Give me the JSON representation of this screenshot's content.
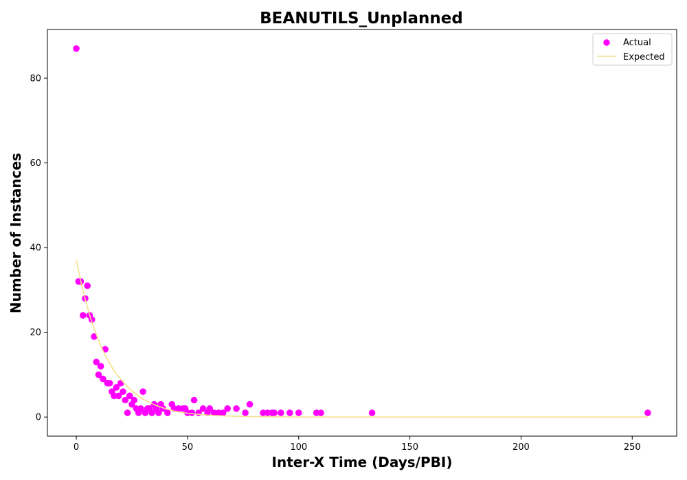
{
  "chart_data": {
    "type": "scatter",
    "title": "BEANUTILS_Unplanned",
    "xlabel": "Inter-X Time (Days/PBI)",
    "ylabel": "Number of Instances",
    "xlim": [
      -13,
      270
    ],
    "ylim": [
      -4.5,
      91.5
    ],
    "xticks": [
      0,
      50,
      100,
      150,
      200,
      250
    ],
    "yticks": [
      0,
      20,
      40,
      60,
      80
    ],
    "grid": false,
    "legend_position": "top-right",
    "series": [
      {
        "name": "Actual",
        "kind": "scatter",
        "color": "#ff00ff",
        "points": [
          [
            0,
            87
          ],
          [
            1,
            32
          ],
          [
            2,
            32
          ],
          [
            3,
            24
          ],
          [
            4,
            28
          ],
          [
            5,
            31
          ],
          [
            6,
            24
          ],
          [
            7,
            23
          ],
          [
            8,
            19
          ],
          [
            9,
            13
          ],
          [
            10,
            10
          ],
          [
            11,
            12
          ],
          [
            12,
            9
          ],
          [
            13,
            16
          ],
          [
            14,
            8
          ],
          [
            15,
            8
          ],
          [
            16,
            6
          ],
          [
            17,
            5
          ],
          [
            18,
            7
          ],
          [
            19,
            5
          ],
          [
            20,
            8
          ],
          [
            21,
            6
          ],
          [
            22,
            4
          ],
          [
            23,
            1
          ],
          [
            24,
            5
          ],
          [
            25,
            3
          ],
          [
            26,
            4
          ],
          [
            27,
            2
          ],
          [
            28,
            1
          ],
          [
            29,
            2
          ],
          [
            30,
            6
          ],
          [
            31,
            1
          ],
          [
            32,
            2
          ],
          [
            33,
            2
          ],
          [
            34,
            1
          ],
          [
            35,
            3
          ],
          [
            36,
            2
          ],
          [
            37,
            1
          ],
          [
            38,
            3
          ],
          [
            39,
            2
          ],
          [
            41,
            1
          ],
          [
            43,
            3
          ],
          [
            44,
            2
          ],
          [
            46,
            2
          ],
          [
            48,
            2
          ],
          [
            49,
            2
          ],
          [
            50,
            1
          ],
          [
            52,
            1
          ],
          [
            53,
            4
          ],
          [
            55,
            1
          ],
          [
            57,
            2
          ],
          [
            59,
            1
          ],
          [
            60,
            2
          ],
          [
            62,
            1
          ],
          [
            64,
            1
          ],
          [
            66,
            1
          ],
          [
            68,
            2
          ],
          [
            72,
            2
          ],
          [
            76,
            1
          ],
          [
            78,
            3
          ],
          [
            84,
            1
          ],
          [
            86,
            1
          ],
          [
            88,
            1
          ],
          [
            89,
            1
          ],
          [
            92,
            1
          ],
          [
            96,
            1
          ],
          [
            100,
            1
          ],
          [
            108,
            1
          ],
          [
            110,
            1
          ],
          [
            133,
            1
          ],
          [
            257,
            1
          ]
        ]
      },
      {
        "name": "Expected",
        "kind": "line",
        "color": "#f5e08a",
        "x": [
          0,
          2,
          4,
          6,
          8,
          10,
          12,
          14,
          16,
          18,
          20,
          22,
          25,
          30,
          35,
          40,
          45,
          50,
          60,
          70,
          80,
          100,
          150,
          200,
          257
        ],
        "y": [
          37,
          32.1,
          27.8,
          24.1,
          20.9,
          18.1,
          15.7,
          13.6,
          11.8,
          10.2,
          8.9,
          7.7,
          6.2,
          4.2,
          2.9,
          2.0,
          1.3,
          0.9,
          0.4,
          0.2,
          0.1,
          0.0,
          0.0,
          0.0,
          0.0
        ]
      }
    ]
  }
}
